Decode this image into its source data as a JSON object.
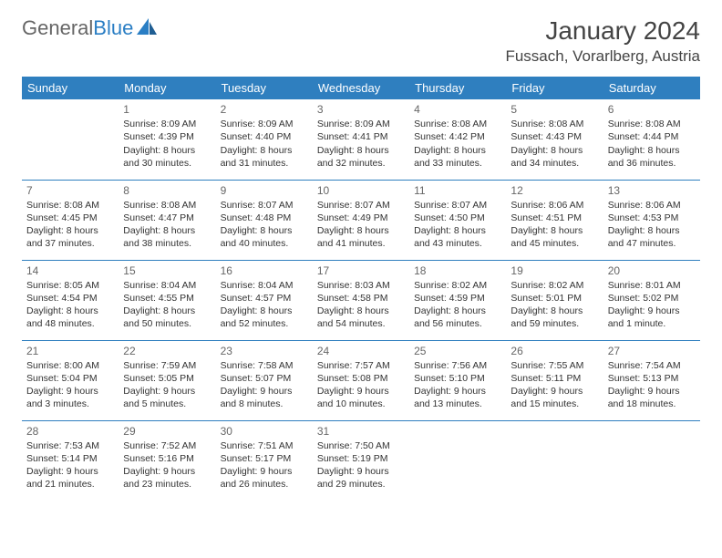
{
  "logo": {
    "text1": "General",
    "text2": "Blue"
  },
  "title": "January 2024",
  "location": "Fussach, Vorarlberg, Austria",
  "colors": {
    "header_bg": "#2f7fbf",
    "header_text": "#ffffff",
    "border": "#2f7fbf",
    "body_text": "#333333",
    "logo_gray": "#666666",
    "logo_blue": "#2a7ec4"
  },
  "weekdays": [
    "Sunday",
    "Monday",
    "Tuesday",
    "Wednesday",
    "Thursday",
    "Friday",
    "Saturday"
  ],
  "weeks": [
    [
      null,
      {
        "n": "1",
        "sr": "8:09 AM",
        "ss": "4:39 PM",
        "dl": "8 hours and 30 minutes."
      },
      {
        "n": "2",
        "sr": "8:09 AM",
        "ss": "4:40 PM",
        "dl": "8 hours and 31 minutes."
      },
      {
        "n": "3",
        "sr": "8:09 AM",
        "ss": "4:41 PM",
        "dl": "8 hours and 32 minutes."
      },
      {
        "n": "4",
        "sr": "8:08 AM",
        "ss": "4:42 PM",
        "dl": "8 hours and 33 minutes."
      },
      {
        "n": "5",
        "sr": "8:08 AM",
        "ss": "4:43 PM",
        "dl": "8 hours and 34 minutes."
      },
      {
        "n": "6",
        "sr": "8:08 AM",
        "ss": "4:44 PM",
        "dl": "8 hours and 36 minutes."
      }
    ],
    [
      {
        "n": "7",
        "sr": "8:08 AM",
        "ss": "4:45 PM",
        "dl": "8 hours and 37 minutes."
      },
      {
        "n": "8",
        "sr": "8:08 AM",
        "ss": "4:47 PM",
        "dl": "8 hours and 38 minutes."
      },
      {
        "n": "9",
        "sr": "8:07 AM",
        "ss": "4:48 PM",
        "dl": "8 hours and 40 minutes."
      },
      {
        "n": "10",
        "sr": "8:07 AM",
        "ss": "4:49 PM",
        "dl": "8 hours and 41 minutes."
      },
      {
        "n": "11",
        "sr": "8:07 AM",
        "ss": "4:50 PM",
        "dl": "8 hours and 43 minutes."
      },
      {
        "n": "12",
        "sr": "8:06 AM",
        "ss": "4:51 PM",
        "dl": "8 hours and 45 minutes."
      },
      {
        "n": "13",
        "sr": "8:06 AM",
        "ss": "4:53 PM",
        "dl": "8 hours and 47 minutes."
      }
    ],
    [
      {
        "n": "14",
        "sr": "8:05 AM",
        "ss": "4:54 PM",
        "dl": "8 hours and 48 minutes."
      },
      {
        "n": "15",
        "sr": "8:04 AM",
        "ss": "4:55 PM",
        "dl": "8 hours and 50 minutes."
      },
      {
        "n": "16",
        "sr": "8:04 AM",
        "ss": "4:57 PM",
        "dl": "8 hours and 52 minutes."
      },
      {
        "n": "17",
        "sr": "8:03 AM",
        "ss": "4:58 PM",
        "dl": "8 hours and 54 minutes."
      },
      {
        "n": "18",
        "sr": "8:02 AM",
        "ss": "4:59 PM",
        "dl": "8 hours and 56 minutes."
      },
      {
        "n": "19",
        "sr": "8:02 AM",
        "ss": "5:01 PM",
        "dl": "8 hours and 59 minutes."
      },
      {
        "n": "20",
        "sr": "8:01 AM",
        "ss": "5:02 PM",
        "dl": "9 hours and 1 minute."
      }
    ],
    [
      {
        "n": "21",
        "sr": "8:00 AM",
        "ss": "5:04 PM",
        "dl": "9 hours and 3 minutes."
      },
      {
        "n": "22",
        "sr": "7:59 AM",
        "ss": "5:05 PM",
        "dl": "9 hours and 5 minutes."
      },
      {
        "n": "23",
        "sr": "7:58 AM",
        "ss": "5:07 PM",
        "dl": "9 hours and 8 minutes."
      },
      {
        "n": "24",
        "sr": "7:57 AM",
        "ss": "5:08 PM",
        "dl": "9 hours and 10 minutes."
      },
      {
        "n": "25",
        "sr": "7:56 AM",
        "ss": "5:10 PM",
        "dl": "9 hours and 13 minutes."
      },
      {
        "n": "26",
        "sr": "7:55 AM",
        "ss": "5:11 PM",
        "dl": "9 hours and 15 minutes."
      },
      {
        "n": "27",
        "sr": "7:54 AM",
        "ss": "5:13 PM",
        "dl": "9 hours and 18 minutes."
      }
    ],
    [
      {
        "n": "28",
        "sr": "7:53 AM",
        "ss": "5:14 PM",
        "dl": "9 hours and 21 minutes."
      },
      {
        "n": "29",
        "sr": "7:52 AM",
        "ss": "5:16 PM",
        "dl": "9 hours and 23 minutes."
      },
      {
        "n": "30",
        "sr": "7:51 AM",
        "ss": "5:17 PM",
        "dl": "9 hours and 26 minutes."
      },
      {
        "n": "31",
        "sr": "7:50 AM",
        "ss": "5:19 PM",
        "dl": "9 hours and 29 minutes."
      },
      null,
      null,
      null
    ]
  ],
  "labels": {
    "sunrise": "Sunrise:",
    "sunset": "Sunset:",
    "daylight": "Daylight:"
  }
}
